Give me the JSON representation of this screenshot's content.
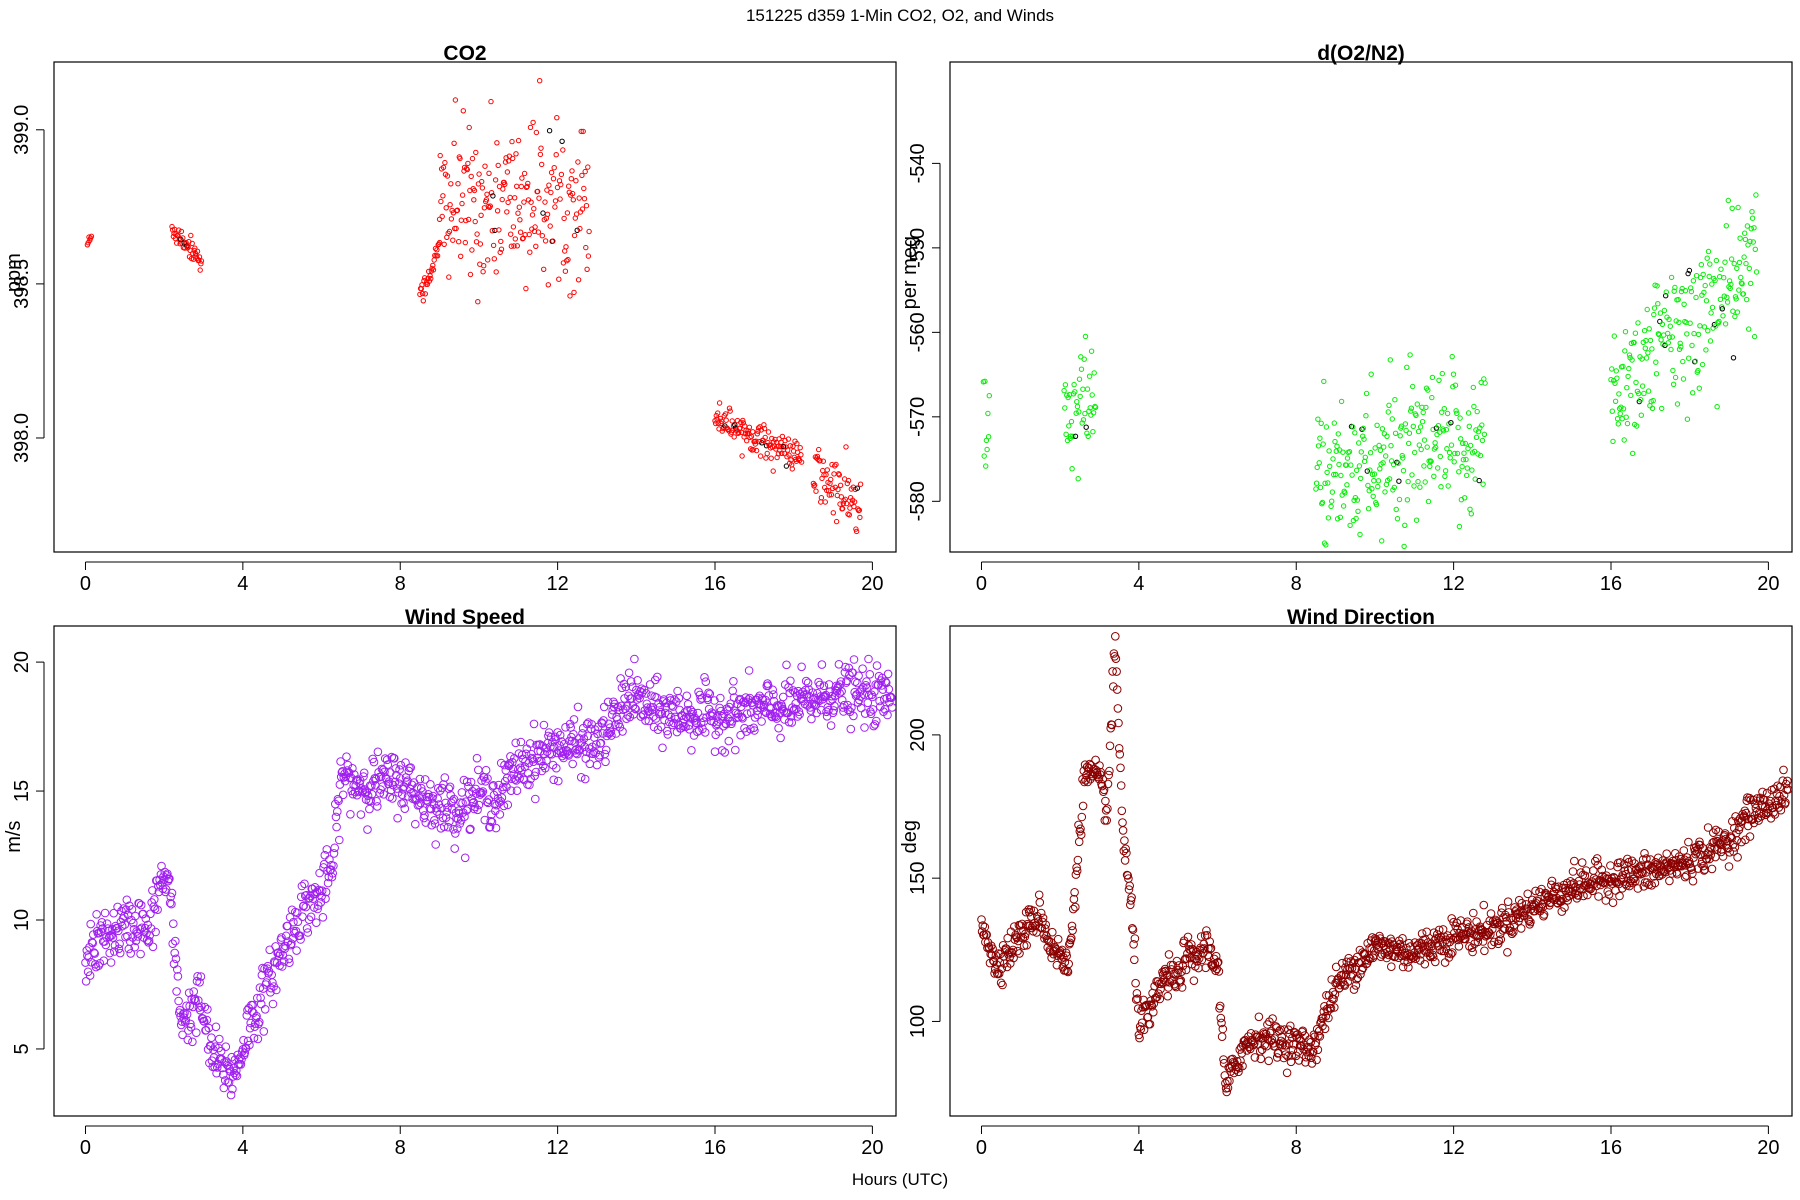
{
  "page": {
    "title": "151225   d359   1-Min CO2, O2, and Winds",
    "xlabel": "Hours (UTC)"
  },
  "chart_data": [
    {
      "type": "scatter",
      "title": "CO2",
      "ylabel": "ppm",
      "xlim": [
        -0.8,
        20.6
      ],
      "ylim": [
        397.63,
        399.22
      ],
      "xticks": [
        0,
        4,
        8,
        12,
        16,
        20
      ],
      "yticks": [
        398.0,
        398.5,
        399.0
      ],
      "ytick_labels": [
        "398.0",
        "398.5",
        "399.0"
      ],
      "color": "#ff0000",
      "marker_radius": 2.2,
      "segments": [
        {
          "x": [
            0.05,
            0.15
          ],
          "y": [
            398.63,
            398.65
          ]
        },
        {
          "x": [
            2.2,
            2.95
          ],
          "y": [
            398.68,
            398.58
          ]
        },
        {
          "x": [
            8.5,
            9.0
          ],
          "y": [
            398.45,
            398.62
          ]
        },
        {
          "x": [
            9.0,
            12.8
          ],
          "y": [
            398.75,
            398.78
          ]
        },
        {
          "x": [
            16.0,
            18.2
          ],
          "y": [
            398.07,
            397.93
          ]
        },
        {
          "x": [
            18.5,
            19.7
          ],
          "y": [
            397.89,
            397.77
          ]
        }
      ],
      "noise_sd": [
        0.01,
        0.02,
        0.02,
        0.13,
        0.025,
        0.05
      ]
    },
    {
      "type": "scatter",
      "title": "d(O2/N2)",
      "ylabel": "per meg",
      "xlim": [
        -0.8,
        20.6
      ],
      "ylim": [
        -586,
        -528
      ],
      "xticks": [
        0,
        4,
        8,
        12,
        16,
        20
      ],
      "yticks": [
        -580,
        -570,
        -560,
        -550,
        -540
      ],
      "ytick_labels": [
        "-580",
        "-570",
        "-560",
        "-550",
        "-540"
      ],
      "color": "#00ee00",
      "marker_radius": 2.2,
      "segments": [
        {
          "x": [
            0.05,
            0.2
          ],
          "y": [
            -572,
            -572
          ]
        },
        {
          "x": [
            2.1,
            2.9
          ],
          "y": [
            -571,
            -568
          ]
        },
        {
          "x": [
            8.5,
            12.8
          ],
          "y": [
            -577,
            -573
          ]
        },
        {
          "x": [
            16.0,
            19.7
          ],
          "y": [
            -567,
            -552
          ]
        }
      ],
      "noise_sd": [
        4,
        4,
        4.5,
        4.5
      ]
    },
    {
      "type": "scatter",
      "title": "Wind Speed",
      "ylabel": "m/s",
      "xlim": [
        -0.8,
        20.6
      ],
      "ylim": [
        2.4,
        21.4
      ],
      "xticks": [
        0,
        4,
        8,
        12,
        16,
        20
      ],
      "yticks": [
        5,
        10,
        15,
        20
      ],
      "ytick_labels": [
        "5",
        "10",
        "15",
        "20"
      ],
      "color": "#a020f0",
      "marker_radius": 3.8,
      "profile_x": [
        0,
        0.5,
        1.0,
        1.4,
        1.6,
        1.9,
        2.1,
        2.4,
        2.6,
        2.9,
        3.2,
        3.5,
        3.8,
        4.1,
        4.5,
        5.0,
        5.5,
        6.0,
        6.3,
        6.5,
        7.0,
        8.0,
        8.5,
        9.0,
        9.5,
        10.0,
        10.5,
        11.0,
        12.0,
        13.0,
        13.5,
        13.8,
        14.5,
        16.0,
        18.0,
        19.0,
        20.5
      ],
      "profile_y": [
        8.6,
        9.3,
        9.7,
        9.9,
        9.3,
        11.5,
        11.6,
        6.4,
        6.2,
        7.0,
        4.8,
        4.3,
        4.0,
        5.7,
        7.0,
        8.8,
        10.4,
        11.0,
        12.2,
        15.6,
        15.2,
        15.4,
        14.8,
        14.4,
        14.3,
        14.9,
        14.7,
        16.0,
        16.7,
        16.8,
        17.8,
        18.8,
        18.0,
        17.9,
        18.3,
        18.8,
        18.6
      ],
      "noise_sd": 0.55
    },
    {
      "type": "scatter",
      "title": "Wind Direction",
      "ylabel": "deg",
      "xlim": [
        -0.8,
        20.6
      ],
      "ylim": [
        67,
        238
      ],
      "xticks": [
        0,
        4,
        8,
        12,
        16,
        20
      ],
      "yticks": [
        100,
        150,
        200
      ],
      "ytick_labels": [
        "100",
        "150",
        "200"
      ],
      "color": "#8b0000",
      "marker_radius": 3.8,
      "profile_x": [
        0,
        0.1,
        0.3,
        0.6,
        1.0,
        1.5,
        1.7,
        2.0,
        2.2,
        2.4,
        2.6,
        2.8,
        3.0,
        3.2,
        3.4,
        3.6,
        3.8,
        4.0,
        4.3,
        4.6,
        5.0,
        5.2,
        5.4,
        5.7,
        6.0,
        6.2,
        6.6,
        7.0,
        8.0,
        8.4,
        9.0,
        9.5,
        10.0,
        11.0,
        12.0,
        13.0,
        14.0,
        15.0,
        16.0,
        17.0,
        18.0,
        19.0,
        19.5,
        20.5
      ],
      "profile_y": [
        136,
        132,
        120,
        123,
        130,
        138,
        128,
        123,
        118,
        150,
        185,
        186,
        183,
        175,
        232,
        165,
        140,
        100,
        102,
        115,
        115,
        124,
        120,
        127,
        120,
        76,
        90,
        95,
        92,
        90,
        112,
        120,
        126,
        124,
        130,
        132,
        140,
        147,
        150,
        152,
        156,
        163,
        172,
        180
      ],
      "noise_sd": 3.2
    }
  ]
}
